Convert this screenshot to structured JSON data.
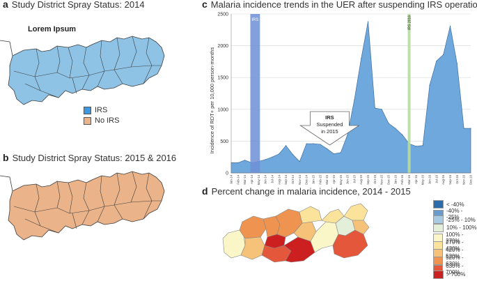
{
  "panel_a": {
    "letter": "a",
    "title": "Study District Spray Status: 2014",
    "map_heading": "Lorem Ipsum",
    "legend": [
      {
        "label": "IRS",
        "color": "#8ec3e6"
      },
      {
        "label": "No IRS",
        "color": "#ebb389"
      }
    ]
  },
  "panel_b": {
    "letter": "b",
    "title": "Study District Spray Status: 2015 & 2016"
  },
  "panel_c": {
    "letter": "c",
    "title": "Malaria incidence trends in the UER after suspending IRS operations"
  },
  "panel_d": {
    "letter": "d",
    "title": "Percent change in malaria incidence, 2014 - 2015",
    "legend": [
      {
        "label": "< -40%",
        "color": "#2d6cab"
      },
      {
        "label": "-40% - -25%",
        "color": "#6a9ccb"
      },
      {
        "label": "-25% - 10%",
        "color": "#a8cbe3"
      },
      {
        "label": "10% - 100%",
        "color": "#e4efd9"
      },
      {
        "label": "100% - 270%",
        "color": "#fbf6c7"
      },
      {
        "label": "270% - 420%",
        "color": "#fbe39b"
      },
      {
        "label": "420% - 520%",
        "color": "#f6c27a"
      },
      {
        "label": "520% - 630%",
        "color": "#ee9350"
      },
      {
        "label": "630% - 700%",
        "color": "#e5573a"
      },
      {
        "label": "> 700%",
        "color": "#cc1f1f"
      }
    ]
  },
  "colors": {
    "irs": "#8ec3e6",
    "no_irs": "#ebb389",
    "area_fill": "#6fa8dc",
    "irs_band": "#6f8fd6",
    "vline": "#b7dd9e"
  },
  "chart_data": {
    "type": "area",
    "title": "Malaria incidence trends in the UER after suspending IRS operations",
    "xlabel": "",
    "ylabel": "Incidence of RDT+ per 10,000 person-months",
    "ylim": [
      0,
      2500
    ],
    "yticks": [
      0,
      500,
      1000,
      1500,
      2000,
      2500
    ],
    "grid": true,
    "categories": [
      "Jan-14",
      "Feb-14",
      "Mar-14",
      "Apr-14",
      "May-14",
      "Jun-14",
      "Jul-14",
      "Aug-14",
      "Sep-14",
      "Oct-14",
      "Nov-14",
      "Dec-14",
      "Jan-15",
      "Feb-15",
      "Mar-15",
      "Apr-15",
      "May-15",
      "Jun-15",
      "Jul-15",
      "Aug-15",
      "Sep-15",
      "Oct-15",
      "Nov-15",
      "Dec-15",
      "Jan-16",
      "Feb-16",
      "Mar-16",
      "Apr-16",
      "May-16",
      "Jun-16",
      "Jul-16",
      "Aug-16",
      "Sep-16",
      "Oct-16",
      "Nov-16",
      "Dec-16"
    ],
    "values": [
      160,
      160,
      200,
      160,
      180,
      210,
      250,
      300,
      430,
      290,
      180,
      460,
      460,
      450,
      380,
      300,
      320,
      600,
      1150,
      1800,
      2380,
      1020,
      1000,
      780,
      700,
      600,
      460,
      420,
      430,
      1380,
      1760,
      1860,
      2310,
      1720,
      700,
      700
    ],
    "irs_band": {
      "label": "IRS",
      "from": "Apr-14",
      "to": "May-14"
    },
    "marker_line": {
      "label": "IRS 2016",
      "at": "Mar-16"
    },
    "annotation": {
      "text": [
        "IRS",
        "Suspended",
        "in 2015"
      ],
      "at": "Apr-15"
    }
  }
}
